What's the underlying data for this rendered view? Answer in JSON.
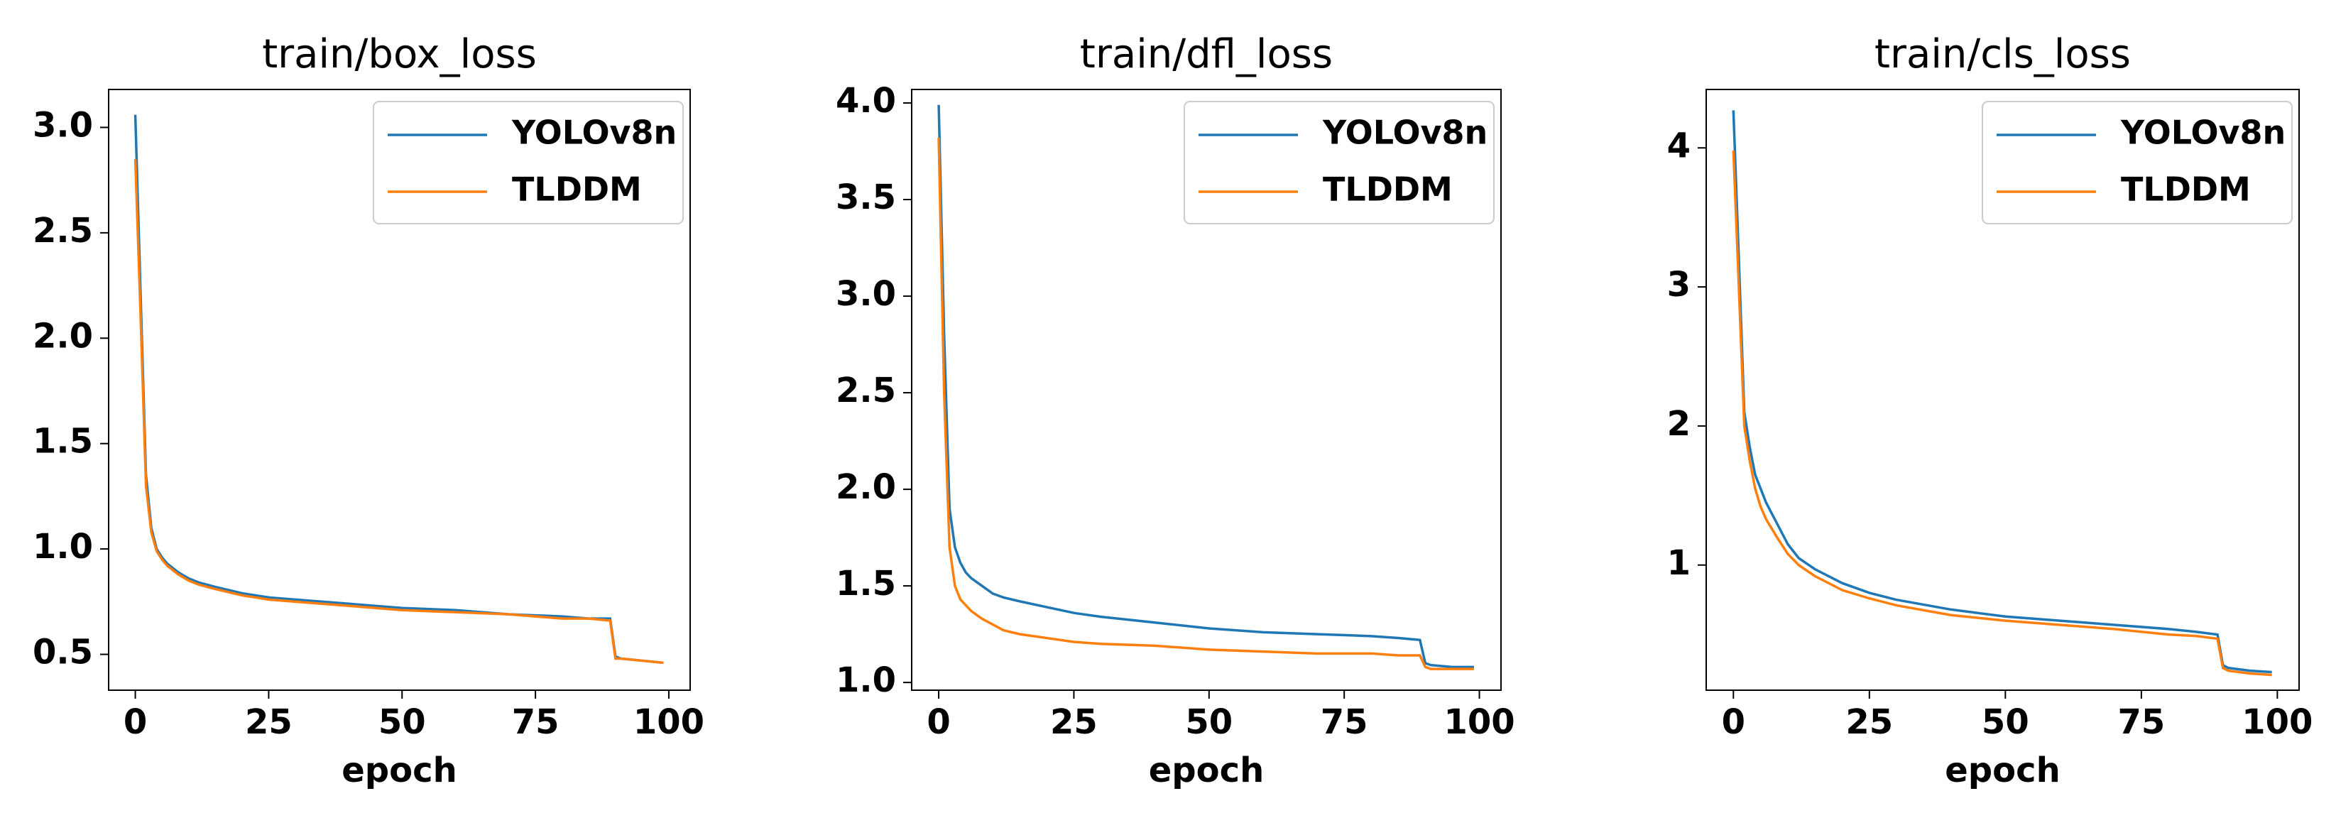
{
  "chart_data": [
    {
      "type": "line",
      "title": "train/box_loss",
      "xlabel": "epoch",
      "x": [
        0,
        1,
        2,
        3,
        4,
        5,
        6,
        8,
        10,
        12,
        15,
        20,
        25,
        30,
        40,
        50,
        60,
        70,
        80,
        85,
        89,
        90,
        91,
        95,
        99
      ],
      "series": [
        {
          "name": "YOLOv8n",
          "color": "#1f77b4",
          "values": [
            3.06,
            2.2,
            1.35,
            1.1,
            1.0,
            0.96,
            0.93,
            0.89,
            0.86,
            0.84,
            0.82,
            0.79,
            0.77,
            0.76,
            0.74,
            0.72,
            0.71,
            0.69,
            0.68,
            0.67,
            0.67,
            0.49,
            0.48,
            0.47,
            0.46
          ]
        },
        {
          "name": "TLDDM",
          "color": "#ff7f0e",
          "values": [
            2.85,
            2.1,
            1.3,
            1.08,
            0.99,
            0.95,
            0.92,
            0.88,
            0.85,
            0.83,
            0.81,
            0.78,
            0.76,
            0.75,
            0.73,
            0.71,
            0.7,
            0.69,
            0.67,
            0.67,
            0.66,
            0.48,
            0.48,
            0.47,
            0.46
          ]
        }
      ],
      "xlim": [
        -5,
        104
      ],
      "ylim": [
        0.33,
        3.18
      ],
      "xticks": [
        0,
        25,
        50,
        75,
        100
      ],
      "yticks": [
        0.5,
        {
          "value": 1,
          "label": "1.0"
        },
        1.5,
        {
          "value": 2,
          "label": "2.0"
        },
        2.5,
        {
          "value": 3,
          "label": "3.0"
        }
      ],
      "legend": "upper right"
    },
    {
      "type": "line",
      "title": "train/dfl_loss",
      "xlabel": "epoch",
      "x": [
        0,
        1,
        2,
        3,
        4,
        5,
        6,
        8,
        10,
        12,
        15,
        20,
        25,
        30,
        40,
        50,
        60,
        70,
        80,
        85,
        89,
        90,
        91,
        95,
        99
      ],
      "series": [
        {
          "name": "YOLOv8n",
          "color": "#1f77b4",
          "values": [
            3.99,
            2.8,
            1.9,
            1.7,
            1.62,
            1.57,
            1.54,
            1.5,
            1.46,
            1.44,
            1.42,
            1.39,
            1.36,
            1.34,
            1.31,
            1.28,
            1.26,
            1.25,
            1.24,
            1.23,
            1.22,
            1.1,
            1.09,
            1.08,
            1.08
          ]
        },
        {
          "name": "TLDDM",
          "color": "#ff7f0e",
          "values": [
            3.82,
            2.5,
            1.7,
            1.5,
            1.43,
            1.4,
            1.37,
            1.33,
            1.3,
            1.27,
            1.25,
            1.23,
            1.21,
            1.2,
            1.19,
            1.17,
            1.16,
            1.15,
            1.15,
            1.14,
            1.14,
            1.08,
            1.07,
            1.07,
            1.07
          ]
        }
      ],
      "xlim": [
        -5,
        104
      ],
      "ylim": [
        0.96,
        4.07
      ],
      "xticks": [
        0,
        25,
        50,
        75,
        100
      ],
      "yticks": [
        {
          "value": 1,
          "label": "1.0"
        },
        1.5,
        {
          "value": 2,
          "label": "2.0"
        },
        2.5,
        {
          "value": 3,
          "label": "3.0"
        },
        3.5,
        {
          "value": 4,
          "label": "4.0"
        }
      ],
      "legend": "upper right"
    },
    {
      "type": "line",
      "title": "train/cls_loss",
      "xlabel": "epoch",
      "x": [
        0,
        1,
        2,
        3,
        4,
        5,
        6,
        8,
        10,
        12,
        15,
        20,
        25,
        30,
        40,
        50,
        60,
        70,
        80,
        85,
        89,
        90,
        91,
        95,
        99
      ],
      "series": [
        {
          "name": "YOLOv8n",
          "color": "#1f77b4",
          "values": [
            4.27,
            3.2,
            2.1,
            1.85,
            1.65,
            1.55,
            1.45,
            1.3,
            1.15,
            1.05,
            0.97,
            0.87,
            0.8,
            0.75,
            0.68,
            0.63,
            0.6,
            0.57,
            0.54,
            0.52,
            0.5,
            0.28,
            0.26,
            0.24,
            0.23
          ]
        },
        {
          "name": "TLDDM",
          "color": "#ff7f0e",
          "values": [
            3.98,
            3.0,
            2.0,
            1.75,
            1.55,
            1.42,
            1.33,
            1.2,
            1.08,
            1.0,
            0.92,
            0.82,
            0.76,
            0.71,
            0.64,
            0.6,
            0.57,
            0.54,
            0.5,
            0.49,
            0.47,
            0.26,
            0.24,
            0.22,
            0.21
          ]
        }
      ],
      "xlim": [
        -5,
        104
      ],
      "ylim": [
        0.1,
        4.42
      ],
      "xticks": [
        0,
        25,
        50,
        75,
        100
      ],
      "yticks": [
        1,
        2,
        3,
        4
      ],
      "legend": "upper right"
    }
  ]
}
